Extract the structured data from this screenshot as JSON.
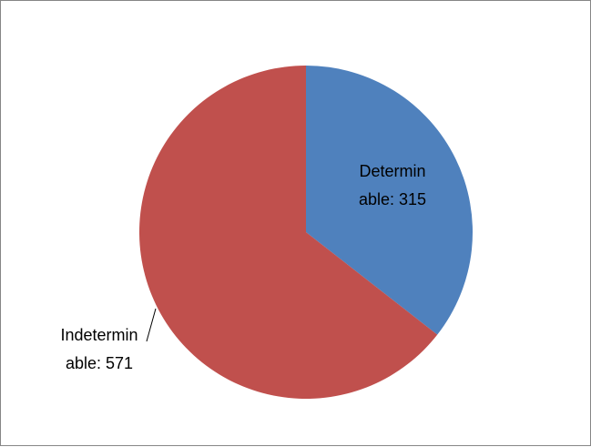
{
  "chart_data": {
    "type": "pie",
    "title": "",
    "slices": [
      {
        "name": "Determinable",
        "value": 315,
        "label_lines": [
          "Determin",
          "able: 315"
        ],
        "color": "#4F81BD"
      },
      {
        "name": "Indeterminable",
        "value": 571,
        "label_lines": [
          "Indetermin",
          "able: 571"
        ],
        "color": "#C0504D"
      }
    ],
    "legend": "none",
    "start_angle_deg": 0,
    "direction": "clockwise"
  }
}
